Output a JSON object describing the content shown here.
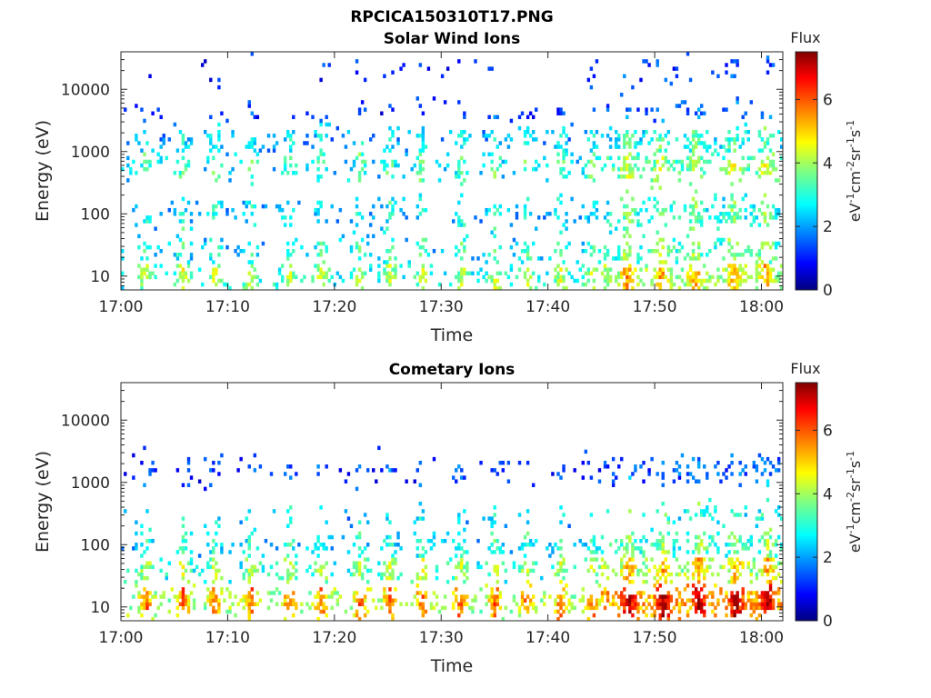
{
  "figure_title": "RPCICA150310T17.PNG",
  "chart_data": [
    {
      "type": "heatmap",
      "title": "Solar Wind Ions",
      "xlabel": "Time",
      "ylabel": "Energy (eV)",
      "x_range": [
        "17:00",
        "18:02"
      ],
      "x_ticks": [
        "17:00",
        "17:10",
        "17:20",
        "17:30",
        "17:40",
        "17:50",
        "18:00"
      ],
      "y_scale": "log",
      "y_range": [
        6,
        40000
      ],
      "y_ticks": [
        "10",
        "100",
        "1000",
        "10000"
      ],
      "colorbar": {
        "title": "Flux",
        "label": "eV-1cm-2sr-1s-1",
        "range": [
          0,
          7.5
        ],
        "ticks": [
          "0",
          "2",
          "4",
          "6"
        ],
        "colormap": "jet"
      },
      "bursts_time_min": [
        2.4,
        5.8,
        8.8,
        12.2,
        15.8,
        18.8,
        22.4,
        25.2,
        28.2,
        32.0,
        35.0,
        38.0,
        41.2,
        44.2,
        47.4,
        50.6,
        53.8,
        57.4,
        60.4
      ],
      "bands": [
        {
          "energy_eV": 10,
          "flux": 4.2,
          "density": 0.55
        },
        {
          "energy_eV": 25,
          "flux": 3.3,
          "density": 0.35
        },
        {
          "energy_eV": 100,
          "flux": 3.0,
          "density": 0.35
        },
        {
          "energy_eV": 600,
          "flux": 3.5,
          "density": 0.4
        },
        {
          "energy_eV": 1500,
          "flux": 2.8,
          "density": 0.35
        },
        {
          "energy_eV": 4000,
          "flux": 1.5,
          "density": 0.12
        },
        {
          "energy_eV": 20000,
          "flux": 1.2,
          "density": 0.08
        }
      ]
    },
    {
      "type": "heatmap",
      "title": "Cometary Ions",
      "xlabel": "Time",
      "ylabel": "Energy (eV)",
      "x_range": [
        "17:00",
        "18:02"
      ],
      "x_ticks": [
        "17:00",
        "17:10",
        "17:20",
        "17:30",
        "17:40",
        "17:50",
        "18:00"
      ],
      "y_scale": "log",
      "y_range": [
        6,
        40000
      ],
      "y_ticks": [
        "10",
        "100",
        "1000",
        "10000"
      ],
      "colorbar": {
        "title": "Flux",
        "label": "eV-1cm-2sr-1s-1",
        "range": [
          0,
          7.5
        ],
        "ticks": [
          "0",
          "2",
          "4",
          "6"
        ],
        "colormap": "jet"
      },
      "bursts_time_min": [
        2.4,
        5.8,
        8.8,
        12.2,
        15.8,
        18.8,
        22.4,
        25.2,
        28.2,
        31.8,
        35.0,
        38.0,
        41.2,
        44.2,
        47.6,
        50.8,
        54.2,
        57.6,
        60.6
      ],
      "bands": [
        {
          "energy_eV": 12,
          "flux": 5.6,
          "density": 0.75
        },
        {
          "energy_eV": 40,
          "flux": 4.2,
          "density": 0.55
        },
        {
          "energy_eV": 100,
          "flux": 3.2,
          "density": 0.4
        },
        {
          "energy_eV": 300,
          "flux": 2.8,
          "density": 0.15
        },
        {
          "energy_eV": 1600,
          "flux": 1.6,
          "density": 0.2
        }
      ]
    }
  ]
}
